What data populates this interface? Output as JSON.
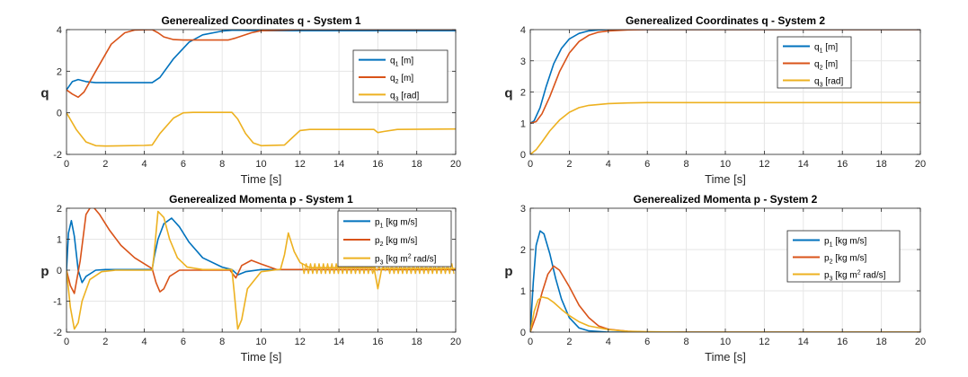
{
  "colors": {
    "blue": "#0072BD",
    "orange": "#D95319",
    "yellow": "#EDB120",
    "grid": "#e6e6e6",
    "axis": "#262626"
  },
  "chart_data": [
    {
      "type": "line",
      "title": "Generealized Coordinates q - System 1",
      "xlabel": "Time [s]",
      "ylabel": "q",
      "xlim": [
        0,
        20
      ],
      "ylim": [
        -2,
        4
      ],
      "xticks": [
        "0",
        "2",
        "4",
        "6",
        "8",
        "10",
        "12",
        "14",
        "16",
        "18",
        "20"
      ],
      "yticks": [
        "-2",
        "0",
        "2",
        "4"
      ],
      "grid": true,
      "legend": {
        "position": "right",
        "entries": [
          {
            "base": "q",
            "sub": "1",
            "sup": "",
            "unit": " [m]"
          },
          {
            "base": "q",
            "sub": "2",
            "sup": "",
            "unit": " [m]"
          },
          {
            "base": "q",
            "sub": "3",
            "sup": "",
            "unit": " [rad]"
          }
        ]
      },
      "series": [
        {
          "color": "blue",
          "x": [
            0,
            0.3,
            0.6,
            1,
            1.5,
            4.4,
            4.8,
            5.5,
            6.3,
            7,
            8,
            8.5,
            9,
            10,
            12,
            20
          ],
          "y": [
            1.1,
            1.5,
            1.6,
            1.5,
            1.45,
            1.45,
            1.7,
            2.6,
            3.4,
            3.75,
            3.93,
            3.97,
            3.97,
            3.95,
            3.95,
            3.95
          ]
        },
        {
          "color": "orange",
          "x": [
            0,
            0.3,
            0.6,
            0.9,
            1.5,
            2.3,
            3,
            3.5,
            4.4,
            4.7,
            5,
            5.5,
            6,
            7,
            8.3,
            8.7,
            9.5,
            10,
            12,
            20
          ],
          "y": [
            1.1,
            0.9,
            0.75,
            1.0,
            2.0,
            3.3,
            3.85,
            3.98,
            4.0,
            3.85,
            3.65,
            3.52,
            3.5,
            3.5,
            3.5,
            3.6,
            3.85,
            3.95,
            4.0,
            4.0
          ]
        },
        {
          "color": "yellow",
          "x": [
            0,
            0.5,
            1,
            1.5,
            2,
            4,
            4.4,
            4.8,
            5.5,
            6,
            6.5,
            8.5,
            8.8,
            9.2,
            9.6,
            10,
            11.2,
            11.6,
            12,
            12.5,
            14,
            15.8,
            16,
            16.3,
            17,
            20
          ],
          "y": [
            0,
            -0.8,
            -1.4,
            -1.58,
            -1.6,
            -1.57,
            -1.55,
            -1.0,
            -0.25,
            0,
            0.02,
            0.02,
            -0.3,
            -1.0,
            -1.45,
            -1.58,
            -1.55,
            -1.2,
            -0.85,
            -0.8,
            -0.8,
            -0.8,
            -0.95,
            -0.9,
            -0.8,
            -0.78
          ]
        }
      ]
    },
    {
      "type": "line",
      "title": "Generealized Coordinates q - System 2",
      "xlabel": "Time [s]",
      "ylabel": "q",
      "xlim": [
        0,
        20
      ],
      "ylim": [
        0,
        4
      ],
      "xticks": [
        "0",
        "2",
        "4",
        "6",
        "8",
        "10",
        "12",
        "14",
        "16",
        "18",
        "20"
      ],
      "yticks": [
        "0",
        "1",
        "2",
        "3",
        "4"
      ],
      "grid": true,
      "legend": {
        "position": "right",
        "entries": [
          {
            "base": "q",
            "sub": "1",
            "sup": "",
            "unit": " [m]"
          },
          {
            "base": "q",
            "sub": "2",
            "sup": "",
            "unit": " [m]"
          },
          {
            "base": "q",
            "sub": "3",
            "sup": "",
            "unit": " [rad]"
          }
        ]
      },
      "series": [
        {
          "color": "blue",
          "x": [
            0,
            0.2,
            0.5,
            0.8,
            1.2,
            1.6,
            2,
            2.5,
            3,
            3.5,
            4,
            5,
            20
          ],
          "y": [
            1,
            1.08,
            1.5,
            2.15,
            2.9,
            3.4,
            3.7,
            3.88,
            3.96,
            3.99,
            4,
            4,
            4
          ]
        },
        {
          "color": "orange",
          "x": [
            0,
            0.3,
            0.6,
            1,
            1.5,
            2,
            2.5,
            3,
            3.5,
            4,
            5,
            6,
            20
          ],
          "y": [
            1,
            1.05,
            1.3,
            1.85,
            2.65,
            3.25,
            3.62,
            3.82,
            3.92,
            3.96,
            3.99,
            4,
            4
          ]
        },
        {
          "color": "yellow",
          "x": [
            0,
            0.3,
            0.6,
            1,
            1.5,
            2,
            2.5,
            3,
            4,
            5,
            6,
            8,
            20
          ],
          "y": [
            0,
            0.15,
            0.4,
            0.75,
            1.1,
            1.35,
            1.5,
            1.57,
            1.63,
            1.65,
            1.66,
            1.66,
            1.66
          ]
        }
      ]
    },
    {
      "type": "line",
      "title": "Generealized Momenta p - System 1",
      "xlabel": "Time [s]",
      "ylabel": "p",
      "xlim": [
        0,
        20
      ],
      "ylim": [
        -2,
        2
      ],
      "xticks": [
        "0",
        "2",
        "4",
        "6",
        "8",
        "10",
        "12",
        "14",
        "16",
        "18",
        "20"
      ],
      "yticks": [
        "-2",
        "-1",
        "0",
        "1",
        "2"
      ],
      "grid": true,
      "legend": {
        "position": "right",
        "entries": [
          {
            "base": "p",
            "sub": "1",
            "sup": "",
            "unit": " [kg m/s]"
          },
          {
            "base": "p",
            "sub": "2",
            "sup": "",
            "unit": " [kg m/s]"
          },
          {
            "base": "p",
            "sub": "3",
            "sup": "2",
            "unit": " rad/s]"
          }
        ]
      },
      "series": [
        {
          "color": "blue",
          "x": [
            0,
            0.1,
            0.25,
            0.4,
            0.6,
            0.8,
            1,
            1.5,
            2,
            3,
            4.4,
            4.5,
            4.7,
            5,
            5.4,
            5.8,
            6.3,
            7,
            8,
            8.5,
            8.8,
            9.2,
            10,
            20
          ],
          "y": [
            0,
            1.2,
            1.6,
            1.1,
            0,
            -0.4,
            -0.2,
            0,
            0.02,
            0.02,
            0.02,
            0.4,
            1.0,
            1.5,
            1.68,
            1.4,
            0.9,
            0.4,
            0.1,
            0.02,
            -0.15,
            -0.05,
            0.02,
            0.02
          ]
        },
        {
          "color": "orange",
          "x": [
            0,
            0.2,
            0.4,
            0.7,
            1,
            1.3,
            1.7,
            2.2,
            2.8,
            3.5,
            4.4,
            4.6,
            4.8,
            5,
            5.3,
            5.8,
            6.5,
            8.4,
            8.7,
            9,
            9.5,
            10,
            10.8,
            20
          ],
          "y": [
            0,
            -0.5,
            -0.75,
            0.3,
            1.8,
            2.1,
            1.8,
            1.3,
            0.8,
            0.4,
            0.05,
            -0.4,
            -0.7,
            -0.6,
            -0.2,
            0.0,
            0.0,
            0.0,
            -0.25,
            0.15,
            0.32,
            0.2,
            0.02,
            0.02
          ]
        },
        {
          "color": "yellow",
          "x": [
            0,
            0.2,
            0.4,
            0.6,
            0.8,
            1.2,
            1.8,
            2.5,
            4.4,
            4.5,
            4.7,
            5,
            5.3,
            5.7,
            6.2,
            7,
            8.5,
            8.6,
            8.8,
            9,
            9.3,
            10,
            11,
            11.2,
            11.4,
            11.7,
            12,
            12.5,
            15.8,
            16,
            16.2,
            16.5,
            17,
            20
          ],
          "y": [
            0,
            -1.2,
            -1.9,
            -1.7,
            -1.0,
            -0.3,
            -0.05,
            0,
            0,
            0.5,
            1.9,
            1.7,
            1.0,
            0.4,
            0.1,
            0.02,
            0.02,
            -0.6,
            -1.9,
            -1.6,
            -0.6,
            -0.05,
            0.03,
            0.5,
            1.2,
            0.6,
            0.25,
            0.08,
            0.08,
            -0.6,
            0.05,
            0.05,
            0.05,
            0.05
          ]
        }
      ]
    },
    {
      "type": "line",
      "title": "Generealized Momenta p - System 2",
      "xlabel": "Time [s]",
      "ylabel": "p",
      "xlim": [
        0,
        20
      ],
      "ylim": [
        0,
        3
      ],
      "xticks": [
        "0",
        "2",
        "4",
        "6",
        "8",
        "10",
        "12",
        "14",
        "16",
        "18",
        "20"
      ],
      "yticks": [
        "0",
        "1",
        "2",
        "3"
      ],
      "grid": true,
      "legend": {
        "position": "right",
        "entries": [
          {
            "base": "p",
            "sub": "1",
            "sup": "",
            "unit": " [kg m/s]"
          },
          {
            "base": "p",
            "sub": "2",
            "sup": "",
            "unit": " [kg m/s]"
          },
          {
            "base": "p",
            "sub": "3",
            "sup": "2",
            "unit": " rad/s]"
          }
        ]
      },
      "series": [
        {
          "color": "blue",
          "x": [
            0,
            0.15,
            0.3,
            0.5,
            0.7,
            1,
            1.3,
            1.6,
            2,
            2.5,
            3,
            4,
            20
          ],
          "y": [
            0,
            1.2,
            2.1,
            2.45,
            2.38,
            1.9,
            1.3,
            0.8,
            0.35,
            0.1,
            0.03,
            0,
            0
          ]
        },
        {
          "color": "orange",
          "x": [
            0,
            0.3,
            0.6,
            0.9,
            1.2,
            1.5,
            2,
            2.5,
            3,
            3.5,
            4,
            5,
            6,
            20
          ],
          "y": [
            0,
            0.4,
            0.95,
            1.4,
            1.6,
            1.5,
            1.1,
            0.65,
            0.35,
            0.15,
            0.07,
            0.02,
            0,
            0
          ]
        },
        {
          "color": "yellow",
          "x": [
            0,
            0.2,
            0.4,
            0.6,
            0.9,
            1.2,
            1.6,
            2,
            2.5,
            3,
            4,
            5,
            6,
            8,
            20
          ],
          "y": [
            0,
            0.5,
            0.78,
            0.85,
            0.82,
            0.72,
            0.55,
            0.4,
            0.25,
            0.15,
            0.06,
            0.02,
            0.01,
            0,
            0
          ]
        }
      ]
    }
  ]
}
